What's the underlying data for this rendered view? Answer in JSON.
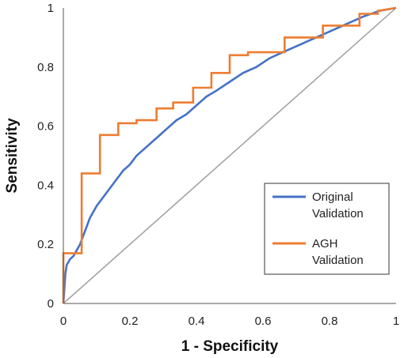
{
  "chart_data": {
    "type": "line",
    "title": "",
    "xlabel": "1 - Specificity",
    "ylabel": "Sensitivity",
    "xlim": [
      0,
      1
    ],
    "ylim": [
      0,
      1
    ],
    "x_ticks": [
      "0",
      "0.2",
      "0.4",
      "0.6",
      "0.8",
      "1"
    ],
    "y_ticks": [
      "0",
      "0.2",
      "0.4",
      "0.6",
      "0.8",
      "1"
    ],
    "grid": false,
    "legend_position": "center-right",
    "reference_line": {
      "x": [
        0,
        1
      ],
      "y": [
        0,
        1
      ],
      "color": "#9e9e9e"
    },
    "series": [
      {
        "name": "Original Validation",
        "color": "#4472c4",
        "points": [
          [
            0,
            0
          ],
          [
            0.003,
            0.05
          ],
          [
            0.006,
            0.1
          ],
          [
            0.01,
            0.13
          ],
          [
            0.02,
            0.15
          ],
          [
            0.03,
            0.16
          ],
          [
            0.04,
            0.18
          ],
          [
            0.05,
            0.2
          ],
          [
            0.06,
            0.23
          ],
          [
            0.07,
            0.26
          ],
          [
            0.08,
            0.29
          ],
          [
            0.09,
            0.31
          ],
          [
            0.1,
            0.33
          ],
          [
            0.12,
            0.36
          ],
          [
            0.14,
            0.39
          ],
          [
            0.16,
            0.42
          ],
          [
            0.18,
            0.45
          ],
          [
            0.2,
            0.47
          ],
          [
            0.22,
            0.5
          ],
          [
            0.25,
            0.53
          ],
          [
            0.28,
            0.56
          ],
          [
            0.31,
            0.59
          ],
          [
            0.34,
            0.62
          ],
          [
            0.37,
            0.64
          ],
          [
            0.4,
            0.67
          ],
          [
            0.43,
            0.7
          ],
          [
            0.46,
            0.72
          ],
          [
            0.5,
            0.75
          ],
          [
            0.54,
            0.78
          ],
          [
            0.58,
            0.8
          ],
          [
            0.62,
            0.83
          ],
          [
            0.66,
            0.85
          ],
          [
            0.7,
            0.87
          ],
          [
            0.74,
            0.89
          ],
          [
            0.78,
            0.91
          ],
          [
            0.82,
            0.93
          ],
          [
            0.86,
            0.95
          ],
          [
            0.9,
            0.97
          ],
          [
            0.95,
            0.99
          ],
          [
            1.0,
            1.0
          ]
        ]
      },
      {
        "name": "AGH Validation",
        "color": "#ed7d31",
        "points": [
          [
            0,
            0
          ],
          [
            0,
            0.17
          ],
          [
            0.055,
            0.17
          ],
          [
            0.055,
            0.44
          ],
          [
            0.11,
            0.44
          ],
          [
            0.11,
            0.57
          ],
          [
            0.165,
            0.57
          ],
          [
            0.165,
            0.61
          ],
          [
            0.22,
            0.61
          ],
          [
            0.22,
            0.62
          ],
          [
            0.28,
            0.62
          ],
          [
            0.28,
            0.66
          ],
          [
            0.33,
            0.66
          ],
          [
            0.33,
            0.68
          ],
          [
            0.39,
            0.68
          ],
          [
            0.39,
            0.73
          ],
          [
            0.445,
            0.73
          ],
          [
            0.445,
            0.78
          ],
          [
            0.5,
            0.78
          ],
          [
            0.5,
            0.84
          ],
          [
            0.555,
            0.84
          ],
          [
            0.555,
            0.85
          ],
          [
            0.665,
            0.85
          ],
          [
            0.665,
            0.9
          ],
          [
            0.78,
            0.9
          ],
          [
            0.78,
            0.94
          ],
          [
            0.89,
            0.94
          ],
          [
            0.89,
            0.98
          ],
          [
            0.945,
            0.98
          ],
          [
            0.945,
            0.99
          ],
          [
            1.0,
            1.0
          ]
        ]
      }
    ]
  }
}
